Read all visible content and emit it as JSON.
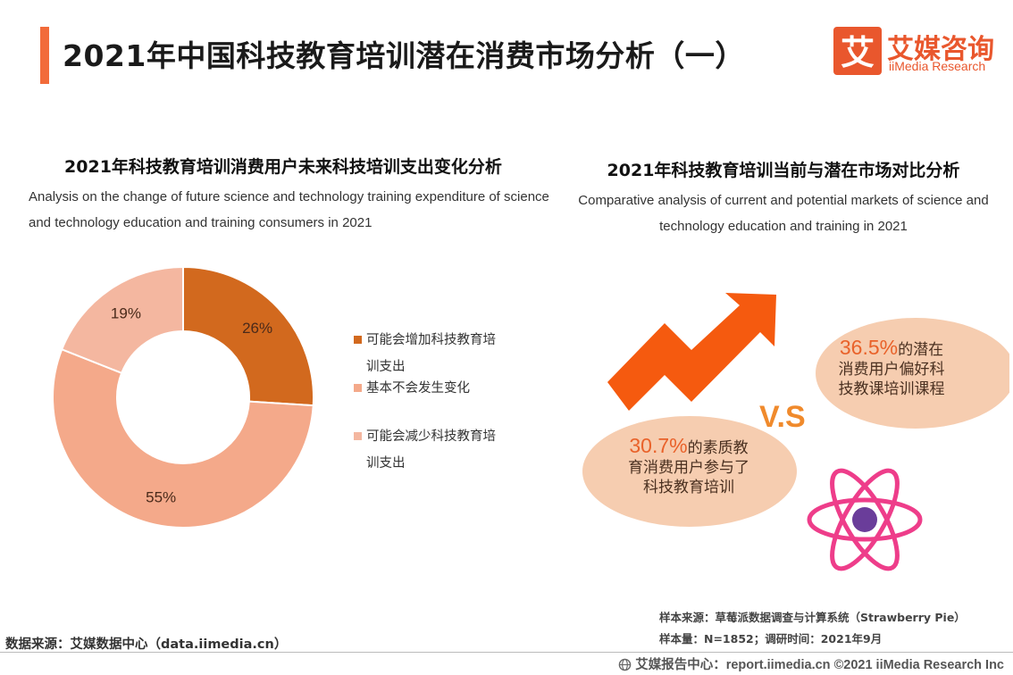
{
  "header": {
    "title": "2021年中国科技教育培训潜在消费市场分析（一）",
    "logo_cn": "艾媒咨询",
    "logo_en": "iiMedia Research",
    "logo_glyph": "艾"
  },
  "left_panel": {
    "title": "2021年科技教育培训消费用户未来科技培训支出变化分析",
    "subtitle": "Analysis on the change of future science and technology training expenditure of science and technology education and training consumers in 2021"
  },
  "chart_data": {
    "type": "pie",
    "variant": "donut",
    "categories": [
      "可能会增加科技教育培训支出",
      "基本不会发生变化",
      "可能会减少科技教育培训支出"
    ],
    "values": [
      26,
      55,
      19
    ],
    "labels": [
      "26%",
      "55%",
      "19%"
    ],
    "colors": [
      "#d2691e",
      "#f4a98a",
      "#f4b7a0"
    ],
    "legend_position": "right",
    "title": "2021年科技教育培训消费用户未来科技培训支出变化分析"
  },
  "right_panel": {
    "title": "2021年科技教育培训当前与潜在市场对比分析",
    "subtitle": "Comparative analysis of current and potential markets of science and technology education and training in 2021",
    "potential": {
      "pct": "36.5%",
      "text_a": "的潜在",
      "text_b": "消费用户偏好科",
      "text_c": "技教课培训课程"
    },
    "current": {
      "pct": "30.7%",
      "text_a": "的素质教",
      "text_b": "育消费用户参与了",
      "text_c": "科技教育培训"
    },
    "vs": "V.S"
  },
  "footer": {
    "data_source": "数据来源：艾媒数据中心（data.iimedia.cn）",
    "sample_source": "样本来源：草莓派数据调查与计算系统（Strawberry Pie）",
    "sample_size": "样本量：N=1852；调研时间：2021年9月",
    "report_center": "艾媒报告中心：report.iimedia.cn ©2021 iiMedia Research Inc"
  },
  "colors": {
    "accent": "#f26b3a",
    "brand": "#e9572d",
    "bubble": "#f6cdb0",
    "arrow": "#f55a0f",
    "atom": "#ee3d8a",
    "nucleus": "#6a3d9a"
  }
}
